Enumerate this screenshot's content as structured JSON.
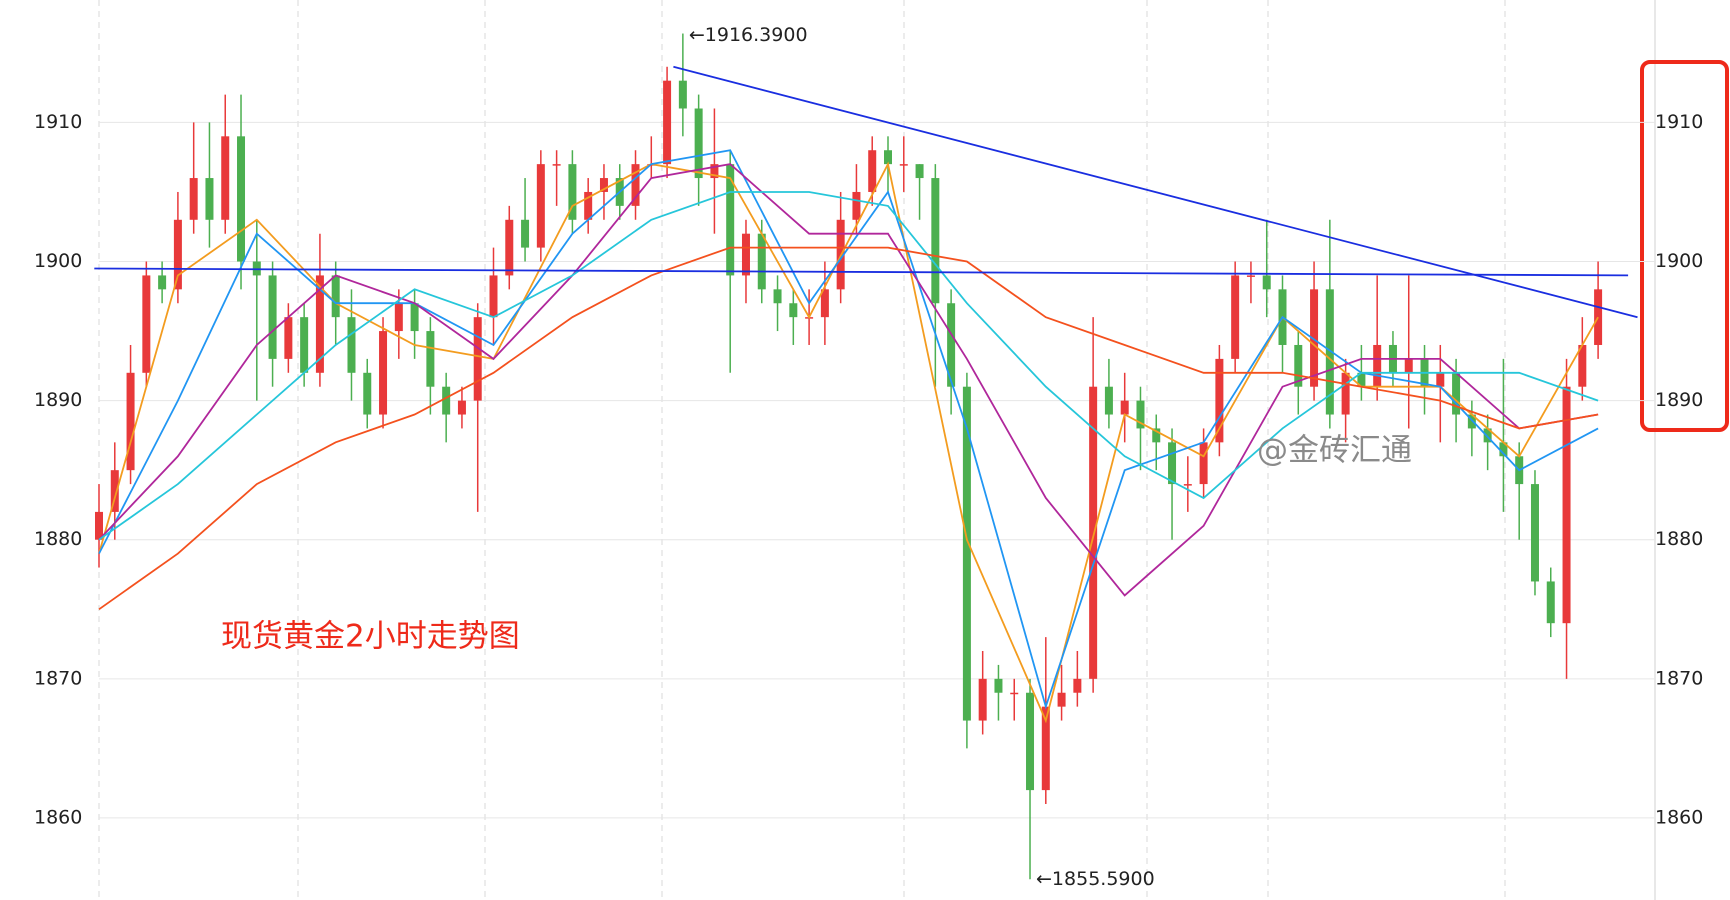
{
  "chart_data": {
    "type": "candlestick",
    "title": "现货黄金2小时走势图",
    "watermark": "@金砖汇通",
    "up_color": "#e8393a",
    "down_color": "#4caf50",
    "ylim": [
      1854.1,
      1918.8
    ],
    "yticks": [
      1860,
      1870,
      1880,
      1890,
      1900,
      1910
    ],
    "grid": true,
    "open": [
      1880,
      1882,
      1885,
      1892,
      1899,
      1898,
      1903,
      1906,
      1903,
      1909,
      1900,
      1899,
      1893,
      1896,
      1892,
      1899,
      1896,
      1892,
      1889,
      1895,
      1897,
      1895,
      1891,
      1889,
      1890,
      1896,
      1899,
      1903,
      1901,
      1907,
      1907,
      1903,
      1905,
      1906,
      1904,
      1907,
      1907,
      1913,
      1911,
      1906,
      1907,
      1899,
      1902,
      1898,
      1897,
      1896,
      1896,
      1898,
      1903,
      1905,
      1908,
      1907,
      1907,
      1906,
      1897,
      1891,
      1867,
      1870,
      1869,
      1869,
      1862,
      1868,
      1869,
      1870,
      1891,
      1889,
      1890,
      1888,
      1887,
      1884,
      1884,
      1887,
      1893,
      1899,
      1899,
      1898,
      1894,
      1891,
      1898,
      1889,
      1892,
      1891,
      1894,
      1892,
      1893,
      1891,
      1892,
      1889,
      1888,
      1887,
      1886,
      1884,
      1877,
      1874,
      1891,
      1894
    ],
    "high": [
      1884,
      1887,
      1894,
      1900,
      1900,
      1905,
      1910,
      1910,
      1912,
      1912,
      1903,
      1900,
      1897,
      1897,
      1902,
      1900,
      1898,
      1893,
      1896,
      1898,
      1898,
      1896,
      1892,
      1891,
      1897,
      1901,
      1904,
      1906,
      1908,
      1908,
      1908,
      1906,
      1907,
      1907,
      1908,
      1909,
      1914,
      1916.39,
      1912,
      1911,
      1908,
      1903,
      1903,
      1899,
      1898,
      1898,
      1900,
      1905,
      1907,
      1909,
      1909,
      1909,
      1907,
      1907,
      1898,
      1892,
      1872,
      1871,
      1870,
      1870,
      1873,
      1871,
      1872,
      1896,
      1893,
      1892,
      1891,
      1889,
      1888,
      1886,
      1888,
      1894,
      1900,
      1900,
      1903,
      1899,
      1895,
      1900,
      1903,
      1893,
      1894,
      1899,
      1895,
      1899,
      1894,
      1894,
      1893,
      1890,
      1889,
      1893,
      1887,
      1885,
      1878,
      1893,
      1896,
      1900
    ],
    "low": [
      1878,
      1880,
      1884,
      1891,
      1897,
      1897,
      1902,
      1901,
      1902,
      1898,
      1890,
      1891,
      1892,
      1891,
      1891,
      1894,
      1890,
      1888,
      1888,
      1893,
      1893,
      1889,
      1887,
      1888,
      1882,
      1894,
      1898,
      1900,
      1900,
      1904,
      1902,
      1902,
      1903,
      1903,
      1903,
      1906,
      1906,
      1909,
      1904,
      1902,
      1892,
      1897,
      1897,
      1895,
      1894,
      1894,
      1894,
      1897,
      1902,
      1904,
      1905,
      1905,
      1903,
      1891,
      1889,
      1865,
      1866,
      1867,
      1867,
      1855.59,
      1861,
      1867,
      1868,
      1869,
      1888,
      1887,
      1885,
      1885,
      1880,
      1882,
      1883,
      1886,
      1892,
      1897,
      1896,
      1892,
      1889,
      1890,
      1888,
      1887,
      1890,
      1890,
      1891,
      1888,
      1889,
      1887,
      1887,
      1886,
      1885,
      1882,
      1880,
      1876,
      1873,
      1870,
      1890,
      1893
    ],
    "close": [
      1882,
      1885,
      1892,
      1899,
      1898,
      1903,
      1906,
      1903,
      1909,
      1900,
      1899,
      1893,
      1896,
      1892,
      1899,
      1896,
      1892,
      1889,
      1895,
      1897,
      1895,
      1891,
      1889,
      1890,
      1896,
      1899,
      1903,
      1901,
      1907,
      1907,
      1903,
      1905,
      1906,
      1904,
      1907,
      1907,
      1913,
      1911,
      1906,
      1907,
      1899,
      1902,
      1898,
      1897,
      1896,
      1896,
      1898,
      1903,
      1905,
      1908,
      1907,
      1907,
      1906,
      1897,
      1891,
      1867,
      1870,
      1869,
      1869,
      1862,
      1868,
      1869,
      1870,
      1891,
      1889,
      1890,
      1888,
      1887,
      1884,
      1884,
      1887,
      1893,
      1899,
      1899,
      1898,
      1894,
      1891,
      1898,
      1889,
      1892,
      1891,
      1894,
      1892,
      1893,
      1891,
      1892,
      1889,
      1888,
      1887,
      1886,
      1884,
      1877,
      1874,
      1891,
      1894,
      1898
    ],
    "moving_averages": [
      {
        "color": "#f39c1f",
        "x": [
          0,
          5,
          10,
          15,
          20,
          25,
          30,
          35,
          40,
          45,
          50,
          55,
          60,
          65,
          70,
          75,
          80,
          85,
          90,
          95
        ],
        "values": [
          1879,
          1899,
          1903,
          1897,
          1894,
          1893,
          1904,
          1907,
          1906,
          1896,
          1907,
          1880,
          1867,
          1889,
          1886,
          1896,
          1891,
          1891,
          1886,
          1896
        ]
      },
      {
        "color": "#2196f3",
        "x": [
          0,
          5,
          10,
          15,
          20,
          25,
          30,
          35,
          40,
          45,
          50,
          55,
          60,
          65,
          70,
          75,
          80,
          85,
          90,
          95
        ],
        "values": [
          1879,
          1890,
          1902,
          1897,
          1897,
          1894,
          1902,
          1907,
          1908,
          1897,
          1905,
          1888,
          1868,
          1885,
          1887,
          1896,
          1892,
          1891,
          1885,
          1888
        ]
      },
      {
        "color": "#b0279b",
        "x": [
          0,
          5,
          10,
          15,
          20,
          25,
          30,
          35,
          40,
          45,
          50,
          55,
          60,
          65,
          70,
          75,
          80,
          85,
          90,
          95
        ],
        "values": [
          1880,
          1886,
          1894,
          1899,
          1897,
          1893,
          1899,
          1906,
          1907,
          1902,
          1902,
          1893,
          1883,
          1876,
          1881,
          1891,
          1893,
          1893,
          1888,
          1889
        ]
      },
      {
        "color": "#26c6da",
        "x": [
          0,
          5,
          10,
          15,
          20,
          25,
          30,
          35,
          40,
          45,
          50,
          55,
          60,
          65,
          70,
          75,
          80,
          85,
          90,
          95
        ],
        "values": [
          1880,
          1884,
          1889,
          1894,
          1898,
          1896,
          1899,
          1903,
          1905,
          1905,
          1904,
          1897,
          1891,
          1886,
          1883,
          1888,
          1892,
          1892,
          1892,
          1890
        ]
      },
      {
        "color": "#f4511e",
        "x": [
          0,
          5,
          10,
          15,
          20,
          25,
          30,
          35,
          40,
          45,
          50,
          55,
          60,
          65,
          70,
          75,
          80,
          85,
          90,
          95
        ],
        "values": [
          1875,
          1879,
          1884,
          1887,
          1889,
          1892,
          1896,
          1899,
          1901,
          1901,
          1901,
          1900,
          1896,
          1894,
          1892,
          1892,
          1891,
          1890,
          1888,
          1889
        ]
      }
    ],
    "trend_lines": [
      {
        "color": "#1a2ee0",
        "x": [
          36.4,
          97.5
        ],
        "values": [
          1914,
          1896
        ]
      },
      {
        "color": "#1a2ee0",
        "x": [
          -0.3,
          96.9
        ],
        "values": [
          1899.5,
          1899
        ]
      }
    ],
    "annotations": [
      {
        "text": "←1916.3900",
        "x": 37,
        "y": 1916.39
      },
      {
        "text": "←1855.5900",
        "x": 59,
        "y": 1855.59
      }
    ]
  }
}
